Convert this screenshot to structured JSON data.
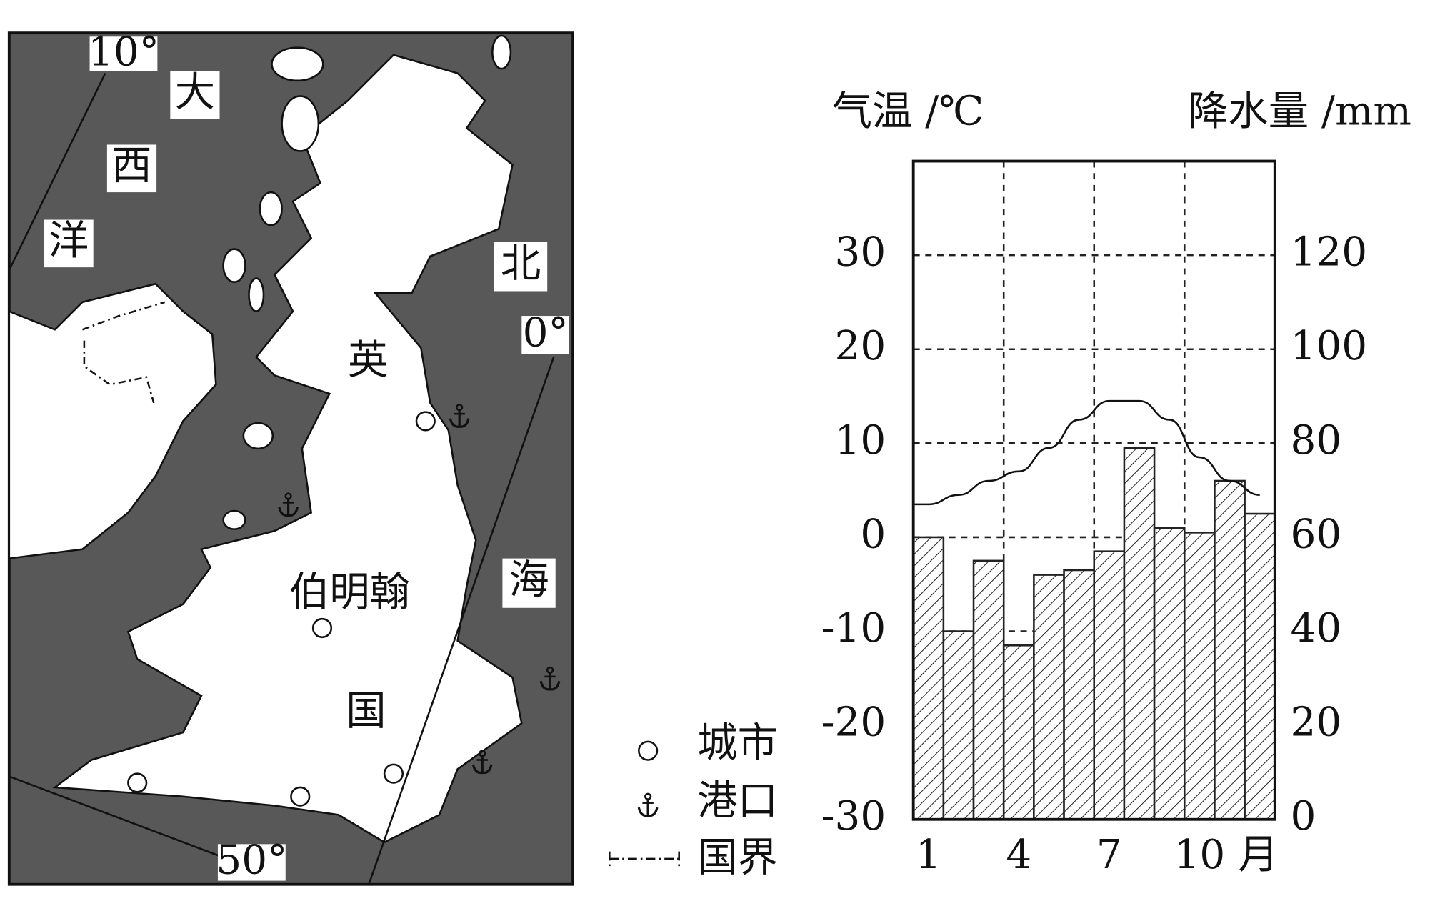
{
  "map": {
    "labels": {
      "meridian_10": "10°",
      "meridian_0": "0°",
      "parallel_50": "50°",
      "ocean_1": "大",
      "ocean_2": "西",
      "ocean_3": "洋",
      "sea_1": "北",
      "sea_2": "海",
      "country_1": "英",
      "city": "伯明翰",
      "country_2": "国"
    }
  },
  "legend": [
    {
      "label": "城市"
    },
    {
      "label": "港口"
    },
    {
      "label": "国界"
    }
  ],
  "chart_data": {
    "type": "bar+line",
    "y_label": "气温 /℃",
    "y2_label": "降水量 /mm",
    "x_label": "月",
    "categories": [
      "1",
      null,
      null,
      "4",
      null,
      null,
      "7",
      null,
      null,
      "10",
      null,
      null
    ],
    "series": [
      {
        "name": "降水量",
        "type": "bar",
        "axis": "y2",
        "color": "#222",
        "values": [
          60,
          40,
          55,
          37,
          52,
          53,
          57,
          79,
          62,
          61,
          72,
          65
        ]
      },
      {
        "name": "气温",
        "type": "line",
        "axis": "y",
        "color": "#111",
        "values": [
          3.5,
          4.5,
          6,
          7,
          9.5,
          12.5,
          14.5,
          14.5,
          12.5,
          8.5,
          6,
          4.5
        ]
      }
    ],
    "ylim": [
      -30,
      40
    ],
    "yticks": [
      -30,
      -20,
      -10,
      0,
      10,
      20,
      30
    ],
    "y2lim": [
      0,
      140
    ],
    "y2ticks": [
      0,
      20,
      40,
      60,
      80,
      100,
      120
    ],
    "grid": true
  }
}
